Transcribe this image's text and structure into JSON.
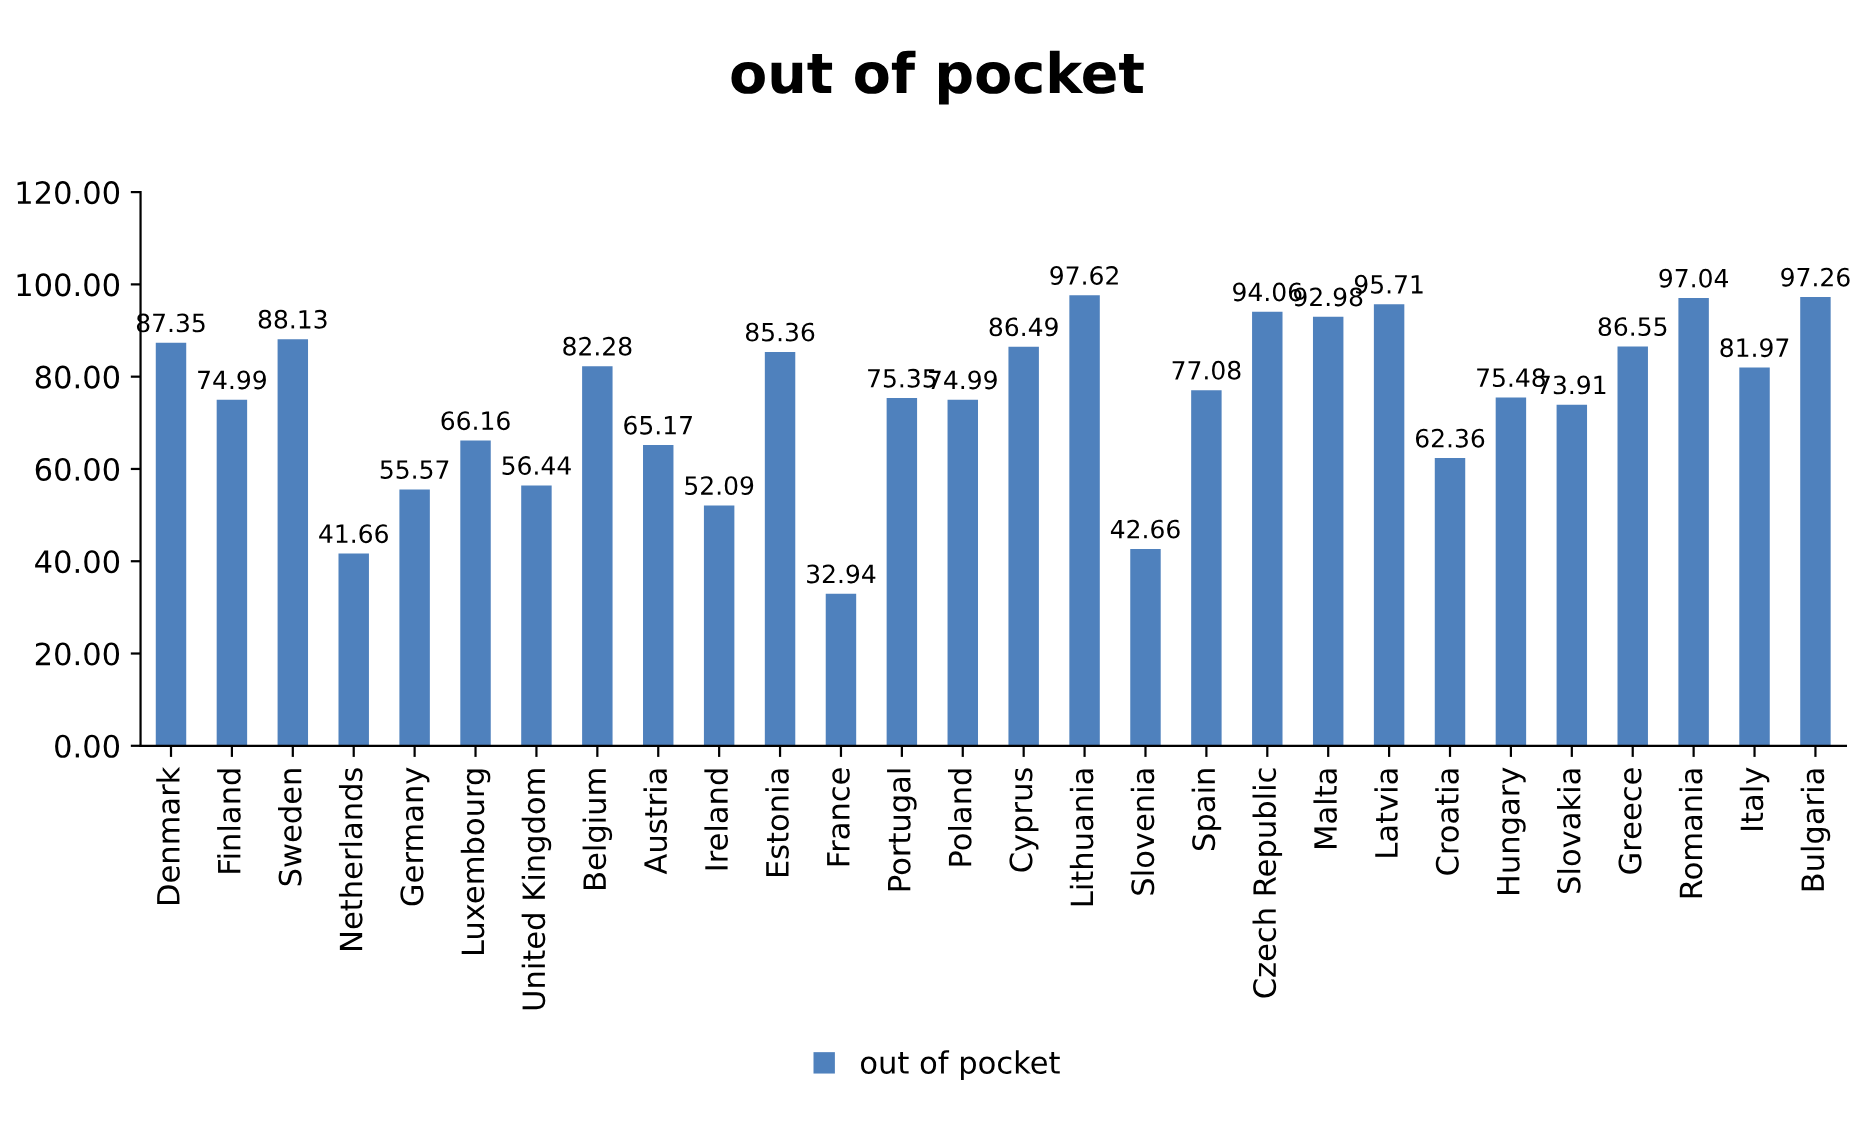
{
  "chart_data": {
    "type": "bar",
    "title": "out of pocket",
    "categories": [
      "Denmark",
      "Finland",
      "Sweden",
      "Netherlands",
      "Germany",
      "Luxembourg",
      "United Kingdom",
      "Belgium",
      "Austria",
      "Ireland",
      "Estonia",
      "France",
      "Portugal",
      "Poland",
      "Cyprus",
      "Lithuania",
      "Slovenia",
      "Spain",
      "Czech Republic",
      "Malta",
      "Latvia",
      "Croatia",
      "Hungary",
      "Slovakia",
      "Greece",
      "Romania",
      "Italy",
      "Bulgaria"
    ],
    "series": [
      {
        "name": "out of pocket",
        "color": "#4f81bd",
        "values": [
          87.35,
          74.99,
          88.13,
          41.66,
          55.57,
          66.16,
          56.44,
          82.28,
          65.17,
          52.09,
          85.36,
          32.94,
          75.35,
          74.99,
          86.49,
          97.62,
          42.66,
          77.08,
          94.06,
          92.98,
          95.71,
          62.36,
          75.48,
          73.91,
          86.55,
          97.04,
          81.97,
          97.26
        ]
      }
    ],
    "ylim": [
      0,
      120
    ],
    "yticks": [
      {
        "value": 0,
        "label": "0.00"
      },
      {
        "value": 20,
        "label": "20.00"
      },
      {
        "value": 40,
        "label": "40.00"
      },
      {
        "value": 60,
        "label": "60.00"
      },
      {
        "value": 80,
        "label": "80.00"
      },
      {
        "value": 100,
        "label": "100.00"
      },
      {
        "value": 120,
        "label": "120.00"
      }
    ],
    "data_labels": true,
    "legend": "bottom",
    "grid": false
  }
}
